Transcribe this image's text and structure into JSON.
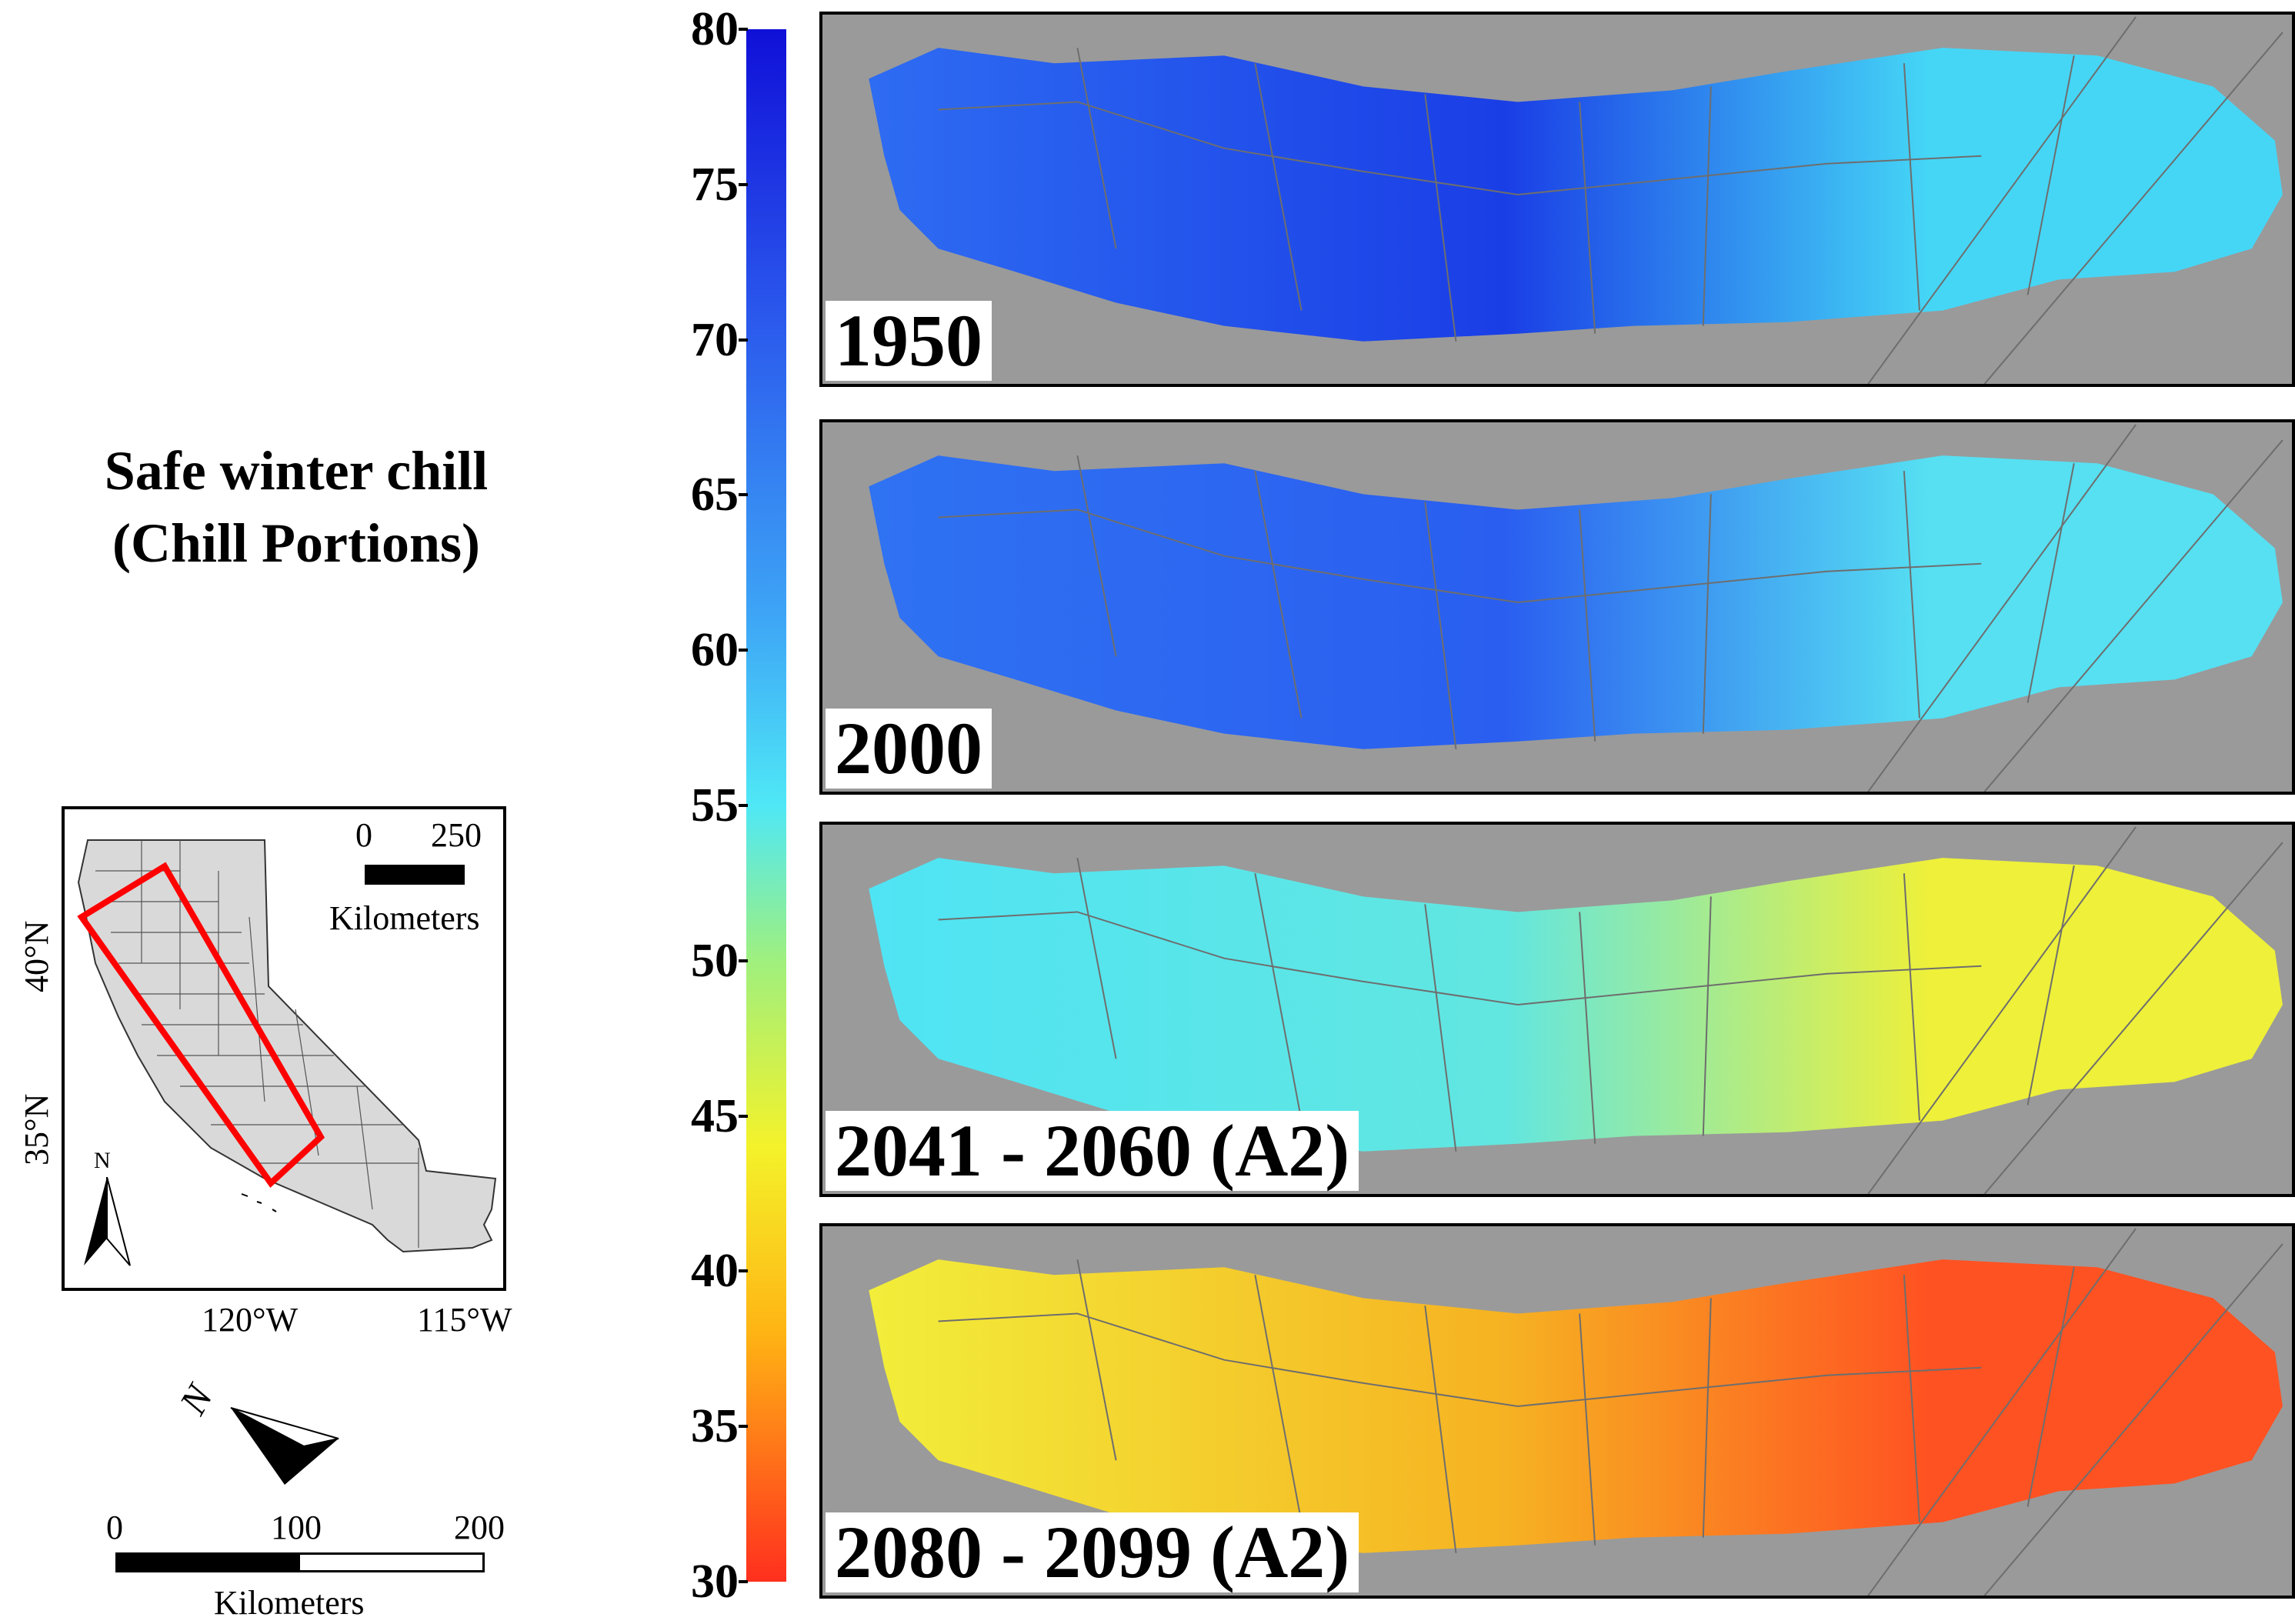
{
  "title": {
    "line1": "Safe winter chill",
    "line2": "(Chill Portions)"
  },
  "inset": {
    "lat_labels": [
      "40°N",
      "35°N"
    ],
    "lon_labels": [
      "120°W",
      "115°W"
    ],
    "north_label": "N",
    "scale_numbers": [
      "0",
      "250"
    ],
    "scale_unit": "Kilometers",
    "colors": {
      "land": "#d9d9d9",
      "border": "#333333",
      "study_area": "#ff0000"
    }
  },
  "main_north_label": "N",
  "main_scale": {
    "numbers": [
      "0",
      "100",
      "200"
    ],
    "unit": "Kilometers"
  },
  "colorbar": {
    "ticks": [
      "80",
      "75",
      "70",
      "65",
      "60",
      "55",
      "50",
      "45",
      "40",
      "35",
      "30"
    ],
    "range": [
      30,
      80
    ],
    "colors": [
      "#1010d8",
      "#3ea6f6",
      "#4fe8f6",
      "#f4f22a",
      "#ffb414",
      "#ff2f1e"
    ]
  },
  "panels": [
    {
      "label": "1950",
      "mean_chill": 71,
      "colors": {
        "west": "#2e6cf2",
        "core": "#1a3ee6",
        "east": "#45d6f6"
      }
    },
    {
      "label": "2000",
      "mean_chill": 66,
      "colors": {
        "west": "#2f72f2",
        "core": "#2a5ef0",
        "east": "#56e0f2"
      }
    },
    {
      "label": "2041 - 2060 (A2)",
      "mean_chill": 50,
      "colors": {
        "west": "#4fe4f4",
        "core": "#62e6e0",
        "east": "#eef03a"
      }
    },
    {
      "label": "2080 - 2099 (A2)",
      "mean_chill": 39,
      "colors": {
        "west": "#f2ee3a",
        "core": "#f6b222",
        "east": "#ff5222"
      }
    }
  ],
  "background_color": "#9a9a9a"
}
